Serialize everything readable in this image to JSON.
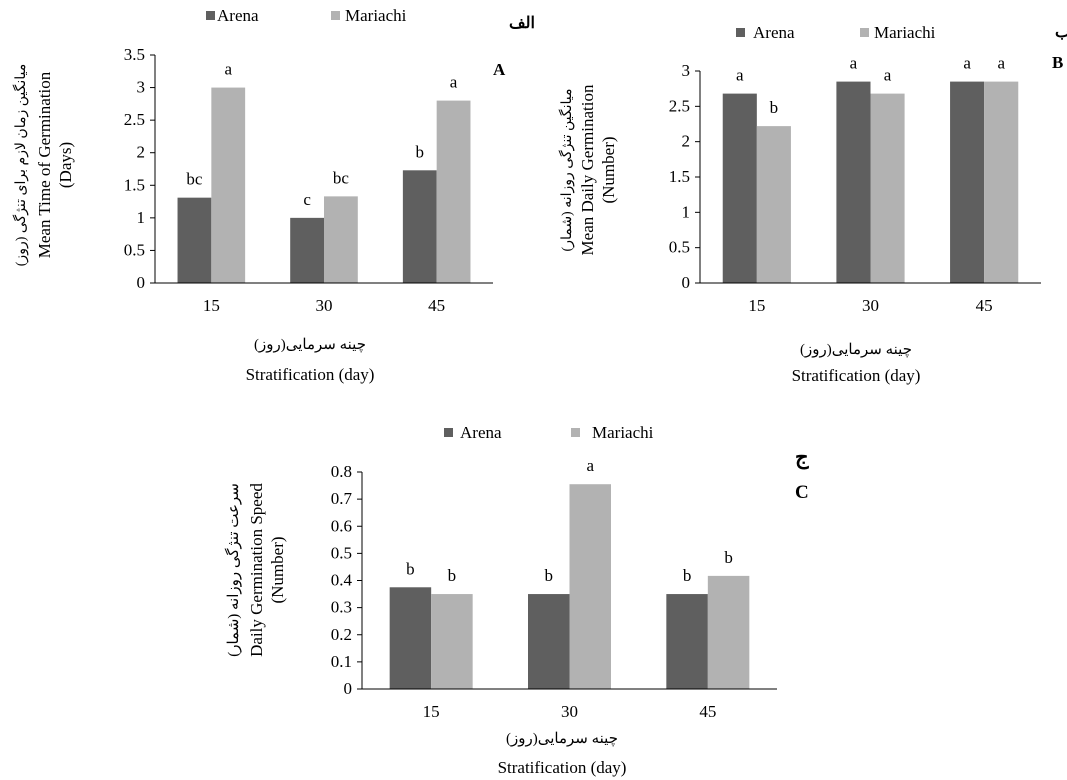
{
  "colors": {
    "arena": "#5f5f5f",
    "mariachi": "#b2b2b2",
    "axis": "#000000"
  },
  "chart_data": [
    {
      "type": "bar",
      "panel_label_fa": "الف",
      "panel_label_en": "A",
      "categories": [
        "15",
        "30",
        "45"
      ],
      "series": [
        {
          "name": "Arena",
          "values": [
            1.31,
            1.0,
            1.73
          ],
          "letters": [
            "bc",
            "c",
            "b"
          ]
        },
        {
          "name": "Mariachi",
          "values": [
            3.0,
            1.33,
            2.8
          ],
          "letters": [
            "a",
            "bc",
            "a"
          ]
        }
      ],
      "ylabel_fa": "میانگین زمان لازم برای تنژگی (روز)",
      "ylabel": "Mean Time of Germination",
      "ylabel_unit": "(Days)",
      "xlabel_fa": "چینه سرمایی(روز)",
      "xlabel": "Stratification (day)",
      "ylim": [
        0,
        3.5
      ],
      "yticks": [
        "0",
        "0.5",
        "1",
        "1.5",
        "2",
        "2.5",
        "3",
        "3.5"
      ],
      "legend": "top",
      "grid": false
    },
    {
      "type": "bar",
      "panel_label_fa": "ب",
      "panel_label_en": "B",
      "categories": [
        "15",
        "30",
        "45"
      ],
      "series": [
        {
          "name": "Arena",
          "values": [
            2.68,
            2.85,
            2.85
          ],
          "letters": [
            "a",
            "a",
            "a"
          ]
        },
        {
          "name": "Mariachi",
          "values": [
            2.22,
            2.68,
            2.85
          ],
          "letters": [
            "b",
            "a",
            "a"
          ]
        }
      ],
      "ylabel_fa": "میانگین تنژگی روزانه (شمار)",
      "ylabel": "Mean Daily Germination",
      "ylabel_unit": "(Number)",
      "xlabel_fa": "چینه سرمایی(روز)",
      "xlabel": "Stratification (day)",
      "ylim": [
        0,
        3
      ],
      "yticks": [
        "0",
        "0.5",
        "1",
        "1.5",
        "2",
        "2.5",
        "3"
      ],
      "legend": "top",
      "grid": false
    },
    {
      "type": "bar",
      "panel_label_fa": "ج",
      "panel_label_en": "C",
      "categories": [
        "15",
        "30",
        "45"
      ],
      "series": [
        {
          "name": "Arena",
          "values": [
            0.375,
            0.35,
            0.35
          ],
          "letters": [
            "b",
            "b",
            "b"
          ]
        },
        {
          "name": "Mariachi",
          "values": [
            0.35,
            0.755,
            0.417
          ],
          "letters": [
            "b",
            "a",
            "b"
          ]
        }
      ],
      "ylabel_fa": "سرعت تنژگی روزانه (شمار)",
      "ylabel": "Daily Germination Speed",
      "ylabel_unit": "(Number)",
      "xlabel_fa": "چینه سرمایی(روز)",
      "xlabel": "Stratification (day)",
      "ylim": [
        0,
        0.8
      ],
      "yticks": [
        "0",
        "0.1",
        "0.2",
        "0.3",
        "0.4",
        "0.5",
        "0.6",
        "0.7",
        "0.8"
      ],
      "legend": "top",
      "grid": false
    }
  ]
}
